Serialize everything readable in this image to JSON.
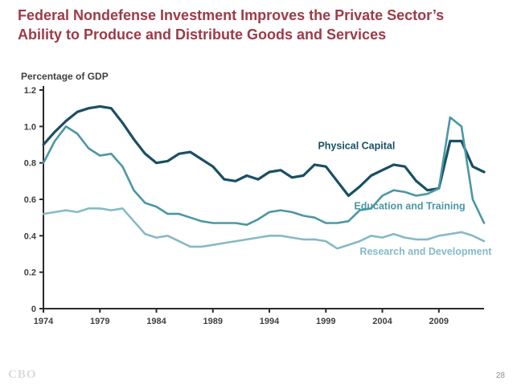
{
  "slide": {
    "title": "Federal Nondefense Investment Improves the Private Sector’s Ability to Produce and Distribute Goods and Services",
    "title_color": "#9e3a47",
    "footer_logo": "CBO",
    "page_number": "28"
  },
  "chart_data": {
    "type": "line",
    "title": "Federal Nondefense Investment Improves the Private Sector’s Ability to Produce and Distribute Goods and Services",
    "ylabel": "Percentage of GDP",
    "xlabel": "",
    "xlim": [
      1974,
      2013
    ],
    "ylim": [
      0,
      1.2
    ],
    "grid": false,
    "legend_position": "inline-labels",
    "x_ticks": [
      1974,
      1979,
      1984,
      1989,
      1994,
      1999,
      2004,
      2009
    ],
    "y_ticks": [
      0,
      0.2,
      0.4,
      0.6,
      0.8,
      1.0,
      1.2
    ],
    "y_tick_labels": [
      "0",
      "0.2",
      "0.4",
      "0.6",
      "0.8",
      "1.0",
      "1.2"
    ],
    "axis_color": "#2b2b2b",
    "years": [
      1974,
      1975,
      1976,
      1977,
      1978,
      1979,
      1980,
      1981,
      1982,
      1983,
      1984,
      1985,
      1986,
      1987,
      1988,
      1989,
      1990,
      1991,
      1992,
      1993,
      1994,
      1995,
      1996,
      1997,
      1998,
      1999,
      2000,
      2001,
      2002,
      2003,
      2004,
      2005,
      2006,
      2007,
      2008,
      2009,
      2010,
      2011,
      2012,
      2013
    ],
    "series": [
      {
        "name": "Physical Capital",
        "color": "#1a4f63",
        "width": 3.2,
        "label": {
          "x": 1998.3,
          "y": 0.875,
          "anchor": "start"
        },
        "values": [
          0.9,
          0.97,
          1.03,
          1.08,
          1.1,
          1.11,
          1.1,
          1.02,
          0.93,
          0.85,
          0.8,
          0.81,
          0.85,
          0.86,
          0.82,
          0.78,
          0.71,
          0.7,
          0.73,
          0.71,
          0.75,
          0.76,
          0.72,
          0.73,
          0.79,
          0.78,
          0.7,
          0.62,
          0.67,
          0.73,
          0.76,
          0.79,
          0.78,
          0.7,
          0.65,
          0.66,
          0.92,
          0.92,
          0.78,
          0.75
        ]
      },
      {
        "name": "Education and Training",
        "color": "#4b97a5",
        "width": 2.6,
        "label": {
          "x": 2001.5,
          "y": 0.545,
          "anchor": "start"
        },
        "values": [
          0.8,
          0.92,
          1.0,
          0.96,
          0.88,
          0.84,
          0.85,
          0.78,
          0.65,
          0.58,
          0.56,
          0.52,
          0.52,
          0.5,
          0.48,
          0.47,
          0.47,
          0.47,
          0.46,
          0.49,
          0.53,
          0.54,
          0.53,
          0.51,
          0.5,
          0.47,
          0.47,
          0.48,
          0.54,
          0.55,
          0.62,
          0.65,
          0.64,
          0.62,
          0.63,
          0.66,
          1.05,
          1.0,
          0.6,
          0.47
        ]
      },
      {
        "name": "Research and Development",
        "color": "#85bac6",
        "width": 2.6,
        "label": {
          "x": 2002.0,
          "y": 0.295,
          "anchor": "start"
        },
        "values": [
          0.52,
          0.53,
          0.54,
          0.53,
          0.55,
          0.55,
          0.54,
          0.55,
          0.48,
          0.41,
          0.39,
          0.4,
          0.37,
          0.34,
          0.34,
          0.35,
          0.36,
          0.37,
          0.38,
          0.39,
          0.4,
          0.4,
          0.39,
          0.38,
          0.38,
          0.37,
          0.33,
          0.35,
          0.37,
          0.4,
          0.39,
          0.41,
          0.39,
          0.38,
          0.38,
          0.4,
          0.41,
          0.42,
          0.4,
          0.37
        ]
      }
    ]
  }
}
